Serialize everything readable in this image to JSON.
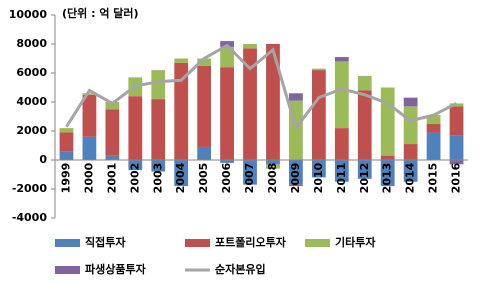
{
  "chart_data": {
    "type": "bar",
    "stacked": true,
    "title": "(단위 : 억 달러)",
    "categories": [
      "1999",
      "2000",
      "2001",
      "2002",
      "2003",
      "2004",
      "2005",
      "2006",
      "2007",
      "2008",
      "2009",
      "2010",
      "2011",
      "2012",
      "2013",
      "2014",
      "2015",
      "2016"
    ],
    "series": [
      {
        "name": "직접투자",
        "color": "#4f81bd",
        "values": [
          600,
          1600,
          300,
          -700,
          -800,
          -1800,
          900,
          -200,
          -1700,
          -300,
          -1700,
          -1200,
          -1500,
          -1300,
          -1800,
          -1500,
          1900,
          1700
        ]
      },
      {
        "name": "포트폴리오투자",
        "color": "#c0504d",
        "values": [
          1300,
          2900,
          3200,
          4400,
          4200,
          6700,
          5600,
          6400,
          7700,
          8000,
          -100,
          6200,
          2200,
          4800,
          300,
          1100,
          600,
          2000
        ]
      },
      {
        "name": "기타투자",
        "color": "#9bbb59",
        "values": [
          300,
          100,
          500,
          1300,
          2000,
          300,
          500,
          1400,
          300,
          -300,
          4100,
          100,
          4600,
          1000,
          4700,
          2600,
          600,
          200
        ]
      },
      {
        "name": "파생상품투자",
        "color": "#8064a2",
        "values": [
          0,
          0,
          0,
          0,
          0,
          0,
          0,
          400,
          0,
          0,
          500,
          0,
          300,
          0,
          0,
          600,
          0,
          -300
        ]
      },
      {
        "name": "순자본유입",
        "color": "#a5a5a5",
        "type": "line",
        "values": [
          2300,
          4800,
          3900,
          5100,
          5400,
          5500,
          7000,
          7900,
          6300,
          7600,
          2200,
          4300,
          4900,
          4500,
          3900,
          2700,
          3100,
          3900
        ]
      }
    ],
    "ylim": [
      -4000,
      10000
    ],
    "yticks": [
      -4000,
      -2000,
      0,
      2000,
      4000,
      6000,
      8000,
      10000
    ]
  }
}
